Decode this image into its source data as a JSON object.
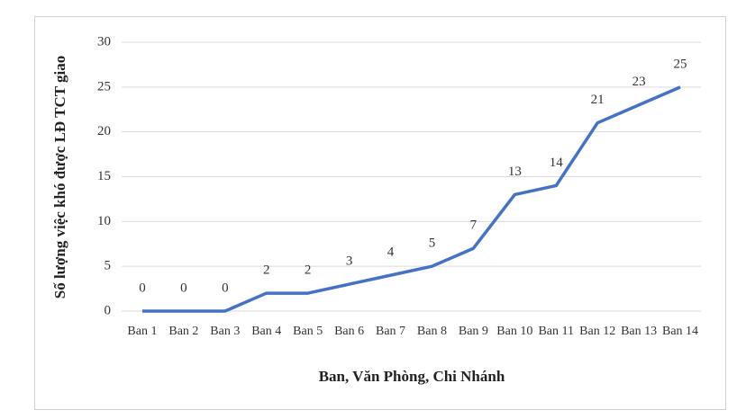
{
  "chart_data": {
    "type": "line",
    "x_label": "Ban, Văn Phòng, Chi Nhánh",
    "y_label": "Số lượng việc khó được LĐ TCT giao",
    "categories": [
      "Ban 1",
      "Ban 2",
      "Ban 3",
      "Ban 4",
      "Ban 5",
      "Ban 6",
      "Ban 7",
      "Ban 8",
      "Ban 9",
      "Ban 10",
      "Ban 11",
      "Ban 12",
      "Ban 13",
      "Ban 14"
    ],
    "values": [
      0,
      0,
      0,
      2,
      2,
      3,
      4,
      5,
      7,
      13,
      14,
      21,
      23,
      25
    ],
    "color": "#4472c4",
    "ylim": [
      0,
      30
    ],
    "yticks": [
      0,
      5,
      10,
      15,
      20,
      25,
      30
    ],
    "grid": true
  }
}
